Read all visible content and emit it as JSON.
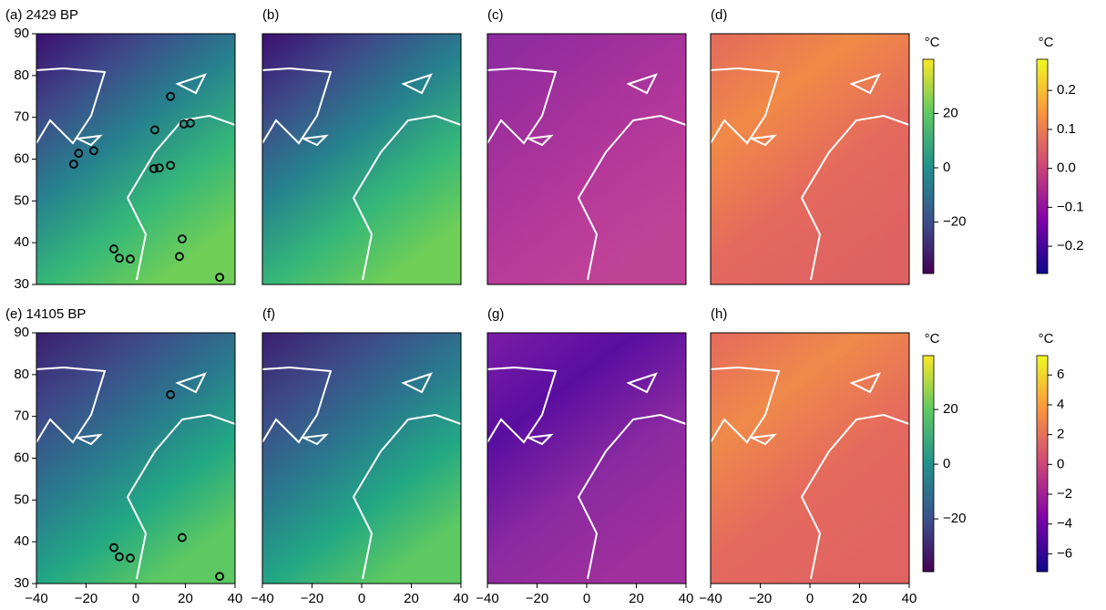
{
  "chart_data": [
    {
      "type": "map",
      "title": "(a) 2429 BP",
      "xlim": [
        -40,
        40
      ],
      "ylim": [
        30,
        90
      ],
      "yticks": [
        30,
        40,
        50,
        60,
        70,
        80,
        90
      ],
      "colors": [
        "#3b0f70",
        "#3e4a89",
        "#26828e",
        "#35b779",
        "#6ece58"
      ],
      "sites": {
        "x": [
          14,
          7.7,
          19.4,
          22,
          -16.9,
          -23,
          -25,
          7.3,
          9.5,
          14,
          -8.8,
          -6.6,
          -2.2,
          18.7,
          17.6,
          33.8
        ],
        "y": [
          75,
          67,
          68.4,
          68.6,
          62,
          61.4,
          58.8,
          57.7,
          57.9,
          58.5,
          38.5,
          36.3,
          36.1,
          40.9,
          36.7,
          31.7
        ]
      }
    },
    {
      "type": "map",
      "title": "(b)",
      "xlim": [
        -40,
        40
      ],
      "ylim": [
        30,
        90
      ],
      "colors": [
        "#3b0f70",
        "#3e4a89",
        "#26828e",
        "#35b779",
        "#6ece58"
      ]
    },
    {
      "type": "map",
      "title": "(c)",
      "xlim": [
        -40,
        40
      ],
      "ylim": [
        30,
        90
      ],
      "colors": [
        "#8a2aa0",
        "#a0309c",
        "#b5399a",
        "#c04496"
      ]
    },
    {
      "type": "map",
      "title": "(d)",
      "xlim": [
        -40,
        40
      ],
      "ylim": [
        30,
        90
      ],
      "colors": [
        "#e36a5c",
        "#f08a47",
        "#e56a5d",
        "#df6263"
      ]
    },
    {
      "type": "map",
      "title": "(e) 14105 BP",
      "xlim": [
        -40,
        40
      ],
      "ylim": [
        30,
        90
      ],
      "xticks": [
        {
          "value": -40,
          "label": "−40"
        },
        {
          "value": -20,
          "label": "−20"
        },
        0,
        20,
        40
      ],
      "yticks": [
        30,
        40,
        50,
        60,
        70,
        80,
        90
      ],
      "colors": [
        "#3b1f6f",
        "#3e4a89",
        "#2a788e",
        "#22a884",
        "#5ec962"
      ],
      "sites": {
        "x": [
          14,
          -8.8,
          -6.6,
          -2.2,
          18.7,
          33.8
        ],
        "y": [
          75.2,
          38.6,
          36.4,
          36.1,
          41,
          31.7
        ]
      }
    },
    {
      "type": "map",
      "title": "(f)",
      "xlim": [
        -40,
        40
      ],
      "ylim": [
        30,
        90
      ],
      "xticks": [
        {
          "value": -40,
          "label": "−40"
        },
        {
          "value": -20,
          "label": "−20"
        },
        0,
        20,
        40
      ],
      "colors": [
        "#3b1f6f",
        "#3e4a89",
        "#2a788e",
        "#22a884",
        "#5ec962"
      ]
    },
    {
      "type": "map",
      "title": "(g)",
      "xlim": [
        -40,
        40
      ],
      "ylim": [
        30,
        90
      ],
      "xticks": [
        {
          "value": -40,
          "label": "−40"
        },
        {
          "value": -20,
          "label": "−20"
        },
        0,
        20,
        40
      ],
      "colors": [
        "#7a1ca6",
        "#5a0ea0",
        "#8a2aa0",
        "#a0309c"
      ]
    },
    {
      "type": "map",
      "title": "(h)",
      "xlim": [
        -40,
        40
      ],
      "ylim": [
        30,
        90
      ],
      "xticks": [
        {
          "value": -40,
          "label": "−40"
        },
        {
          "value": -20,
          "label": "−20"
        },
        0,
        20,
        40
      ],
      "colors": [
        "#e56a5d",
        "#ef8a4a",
        "#e56a5d",
        "#e16462"
      ]
    },
    {
      "type": "colorbar",
      "label": "°C",
      "ylim": [
        -39,
        40
      ],
      "yticks": [
        20,
        0,
        {
          "value": -20,
          "label": "−20"
        }
      ],
      "colors": [
        "#440154",
        "#3b528b",
        "#21918c",
        "#5ec962",
        "#fde725"
      ]
    },
    {
      "type": "colorbar",
      "label": "°C",
      "ylim": [
        -0.27,
        0.28
      ],
      "yticks": [
        0.2,
        0.1,
        {
          "value": 0,
          "label": "0.0"
        },
        {
          "value": -0.1,
          "label": "−0.1"
        },
        {
          "value": -0.2,
          "label": "−0.2"
        }
      ],
      "colors": [
        "#0d0887",
        "#7e03a8",
        "#cc4778",
        "#f89540",
        "#f0f921"
      ]
    },
    {
      "type": "colorbar",
      "label": "°C",
      "ylim": [
        -39.3,
        39.7
      ],
      "yticks": [
        20,
        0,
        {
          "value": -20,
          "label": "−20"
        }
      ],
      "colors": [
        "#440154",
        "#3b528b",
        "#21918c",
        "#5ec962",
        "#fde725"
      ]
    },
    {
      "type": "colorbar",
      "label": "°C",
      "ylim": [
        -7.2,
        7.3
      ],
      "yticks": [
        6,
        4,
        2,
        0,
        {
          "value": -2,
          "label": "−2"
        },
        {
          "value": -4,
          "label": "−4"
        },
        {
          "value": -6,
          "label": "−6"
        }
      ],
      "colors": [
        "#0d0887",
        "#7e03a8",
        "#cc4778",
        "#f89540",
        "#f0f921"
      ]
    }
  ]
}
